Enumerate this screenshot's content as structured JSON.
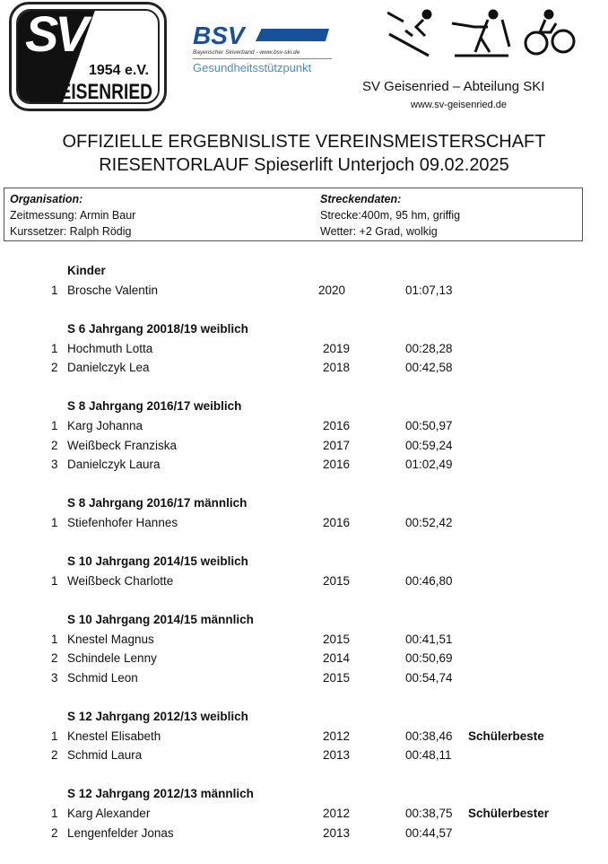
{
  "header": {
    "logo_text": "SV 1954 e.V. GEISENRIED",
    "bsv_logo": "BSV",
    "bsv_sub": "Bayerischer Skiverband - www.bsv-ski.de",
    "bsv_tag": "Gesundheitsstützpunkt",
    "club": "SV Geisenried – Abteilung SKI",
    "website": "www.sv-geisenried.de"
  },
  "title_line1": "OFFIZIELLE ERGEBNISLISTE VEREINSMEISTERSCHAFT",
  "title_line2": "RIESENTORLAUF Spieserlift Unterjoch 09.02.2025",
  "info": {
    "org_label": "Organisation:",
    "org_lines": [
      "Zeitmessung: Armin Baur",
      "Kurssetzer: Ralph Rödig"
    ],
    "track_label": "Streckendaten:",
    "track_lines": [
      "Strecke:400m, 95 hm, griffig",
      "Wetter: +2 Grad, wolkig"
    ]
  },
  "groups": [
    {
      "title": "Kinder",
      "rows": [
        [
          "1",
          "Brosche Valentin",
          "2020",
          "01:07,13",
          ""
        ]
      ]
    },
    {
      "title": "S 6 Jahrgang 20018/19 weiblich",
      "rows": [
        [
          "1",
          "Hochmuth Lotta",
          "2019",
          "00:28,28",
          ""
        ],
        [
          "2",
          "Danielczyk Lea",
          "2018",
          "00:42,58",
          ""
        ]
      ]
    },
    {
      "title": "S 8 Jahrgang 2016/17 weiblich",
      "rows": [
        [
          "1",
          "Karg Johanna",
          "2016",
          "00:50,97",
          ""
        ],
        [
          "2",
          "Weißbeck Franziska",
          "2017",
          "00:59,24",
          ""
        ],
        [
          "3",
          "Danielczyk Laura",
          "2016",
          "01:02,49",
          ""
        ]
      ]
    },
    {
      "title": "S 8 Jahrgang 2016/17 männlich",
      "rows": [
        [
          "1",
          "Stiefenhofer Hannes",
          "2016",
          "00:52,42",
          ""
        ]
      ]
    },
    {
      "title": "S 10 Jahrgang 2014/15 weiblich",
      "rows": [
        [
          "1",
          "Weißbeck Charlotte",
          "2015",
          "00:46,80",
          ""
        ]
      ]
    },
    {
      "title": "S 10 Jahrgang 2014/15 männlich",
      "rows": [
        [
          "1",
          "Knestel Magnus",
          "2015",
          "00:41,51",
          ""
        ],
        [
          "2",
          "Schindele Lenny",
          "2014",
          "00:50,69",
          ""
        ],
        [
          "3",
          "Schmid Leon",
          "2015",
          "00:54,74",
          ""
        ]
      ]
    },
    {
      "title": "S 12 Jahrgang 2012/13 weiblich",
      "rows": [
        [
          "1",
          "Knestel Elisabeth",
          "2012",
          "00:38,46",
          "Schülerbeste"
        ],
        [
          "2",
          "Schmid Laura",
          "2013",
          "00:48,11",
          ""
        ]
      ]
    },
    {
      "title": "S 12 Jahrgang 2012/13 männlich",
      "rows": [
        [
          "1",
          "Karg Alexander",
          "2012",
          "00:38,75",
          "Schülerbester"
        ],
        [
          "2",
          "Lengenfelder Jonas",
          "2013",
          "00:44,57",
          ""
        ]
      ]
    }
  ]
}
